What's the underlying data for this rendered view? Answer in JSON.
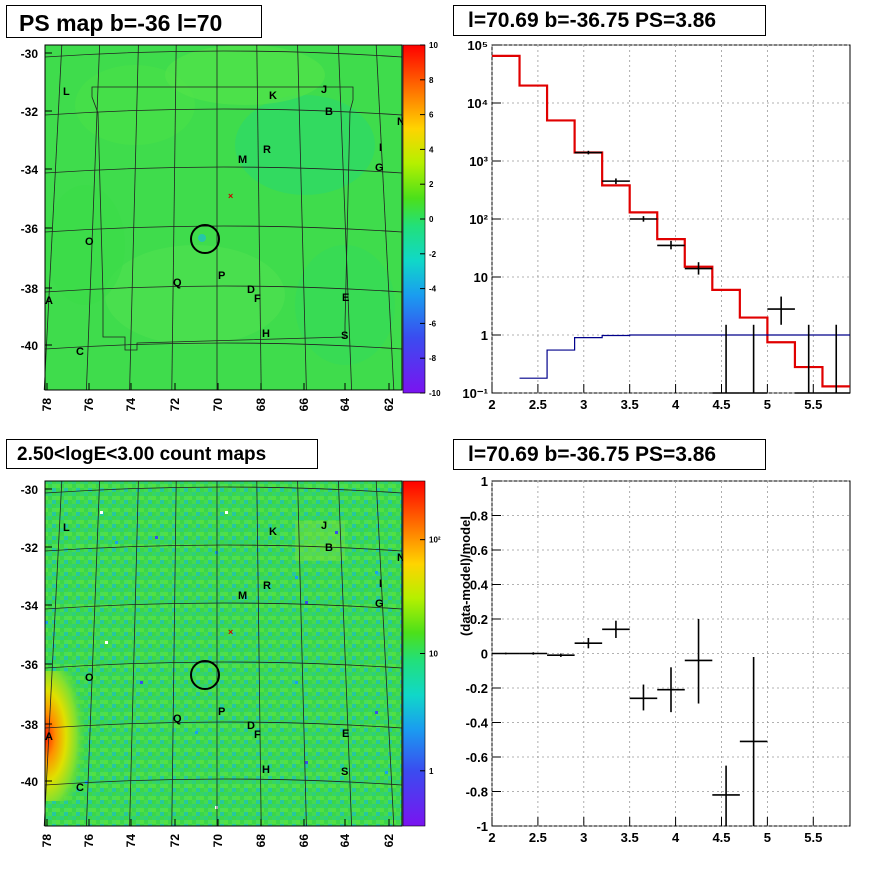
{
  "panels": {
    "tl_title": "PS map b=-36 l=70",
    "tr_title": "l=70.69 b=-36.75 PS=3.86",
    "bl_title": "2.50<logE<3.00 count maps",
    "br_title": "l=70.69 b=-36.75 PS=3.86"
  },
  "map_axes": {
    "y_ticks": [
      "-30",
      "-32",
      "-34",
      "-36",
      "-38",
      "-40"
    ],
    "x_ticks": [
      "78",
      "76",
      "74",
      "72",
      "70",
      "68",
      "66",
      "64",
      "62"
    ]
  },
  "source_labels": [
    "L",
    "K",
    "J",
    "B",
    "N",
    "R",
    "M",
    "I",
    "G",
    "O",
    "Q",
    "P",
    "D",
    "F",
    "E",
    "A",
    "H",
    "S",
    "C"
  ],
  "colors": {
    "map_bg": "#33e04d",
    "model_line": "#e00000",
    "background_line": "#00008b",
    "data": "#000000"
  },
  "colorbar_ts": {
    "ticks": [
      "10",
      "8",
      "6",
      "4",
      "2",
      "0",
      "-2",
      "-4",
      "-6",
      "-8",
      "-10"
    ]
  },
  "colorbar_counts": {
    "ticks": [
      "10²",
      "10",
      "1"
    ]
  },
  "chart_data": [
    {
      "type": "scatter",
      "panel": "spectrum",
      "title": "l=70.69 b=-36.75 PS=3.86",
      "xlabel": "",
      "ylabel": "",
      "xlim": [
        2,
        5.9
      ],
      "ylim": [
        0.1,
        100000
      ],
      "y_log": true,
      "x_ticks": [
        "2",
        "2.5",
        "3",
        "3.5",
        "4",
        "4.5",
        "5",
        "5.5"
      ],
      "y_ticks": [
        "10⁻¹",
        "1",
        "10",
        "10²",
        "10³",
        "10⁴",
        "10⁵"
      ],
      "model_step": {
        "edges": [
          2,
          2.3,
          2.6,
          2.9,
          3.2,
          3.5,
          3.8,
          4.1,
          4.4,
          4.7,
          5.0,
          5.3,
          5.6,
          5.9
        ],
        "values": [
          65000,
          20000,
          5000,
          1400,
          380,
          130,
          45,
          15,
          6,
          2,
          0.75,
          0.28,
          0.13
        ]
      },
      "background_step": {
        "edges": [
          2.3,
          2.6,
          2.9,
          3.2,
          3.5,
          5.9
        ],
        "values": [
          0.18,
          0.55,
          0.9,
          0.98,
          1
        ]
      },
      "data_points": [
        {
          "x": 3.05,
          "y": 1400,
          "xerr": 0.15,
          "ylo": 1300,
          "yhi": 1500
        },
        {
          "x": 3.35,
          "y": 450,
          "xerr": 0.15,
          "ylo": 400,
          "yhi": 500
        },
        {
          "x": 3.65,
          "y": 100,
          "xerr": 0.15,
          "ylo": 90,
          "yhi": 112
        },
        {
          "x": 3.95,
          "y": 35,
          "xerr": 0.15,
          "ylo": 30,
          "yhi": 42
        },
        {
          "x": 4.25,
          "y": 14,
          "xerr": 0.15,
          "ylo": 11,
          "yhi": 18
        },
        {
          "x": 4.55,
          "y": 0.1,
          "xerr": 0.15,
          "ylo": 0.1,
          "yhi": 1.5
        },
        {
          "x": 4.85,
          "y": 0.1,
          "xerr": 0.15,
          "ylo": 0.1,
          "yhi": 1.5
        },
        {
          "x": 5.15,
          "y": 2.8,
          "xerr": 0.15,
          "ylo": 1.5,
          "yhi": 4.6
        },
        {
          "x": 5.45,
          "y": 0.1,
          "xerr": 0.15,
          "ylo": 0.1,
          "yhi": 1.5
        },
        {
          "x": 5.75,
          "y": 0.1,
          "xerr": 0.15,
          "ylo": 0.1,
          "yhi": 1.5
        }
      ]
    },
    {
      "type": "scatter",
      "panel": "residual",
      "title": "l=70.69 b=-36.75 PS=3.86",
      "xlabel": "",
      "ylabel": "(data-model)/model",
      "xlim": [
        2,
        5.9
      ],
      "ylim": [
        -1,
        1
      ],
      "x_ticks": [
        "2",
        "2.5",
        "3",
        "3.5",
        "4",
        "4.5",
        "5",
        "5.5"
      ],
      "y_ticks": [
        "-1",
        "-0.8",
        "-0.6",
        "-0.4",
        "-0.2",
        "0",
        "0.2",
        "0.4",
        "0.6",
        "0.8",
        "1"
      ],
      "data_points": [
        {
          "x": 2.15,
          "y": 0.0,
          "xerr": 0.15,
          "ylo": -0.005,
          "yhi": 0.005
        },
        {
          "x": 2.45,
          "y": 0.0,
          "xerr": 0.15,
          "ylo": -0.007,
          "yhi": 0.007
        },
        {
          "x": 2.75,
          "y": -0.01,
          "xerr": 0.15,
          "ylo": -0.02,
          "yhi": 0.0
        },
        {
          "x": 3.05,
          "y": 0.06,
          "xerr": 0.15,
          "ylo": 0.03,
          "yhi": 0.09
        },
        {
          "x": 3.35,
          "y": 0.14,
          "xerr": 0.15,
          "ylo": 0.09,
          "yhi": 0.19
        },
        {
          "x": 3.65,
          "y": -0.26,
          "xerr": 0.15,
          "ylo": -0.33,
          "yhi": -0.18
        },
        {
          "x": 3.95,
          "y": -0.21,
          "xerr": 0.15,
          "ylo": -0.34,
          "yhi": -0.08
        },
        {
          "x": 4.25,
          "y": -0.04,
          "xerr": 0.15,
          "ylo": -0.29,
          "yhi": 0.2
        },
        {
          "x": 4.55,
          "y": -0.82,
          "xerr": 0.15,
          "ylo": -1.0,
          "yhi": -0.65
        },
        {
          "x": 4.85,
          "y": -0.51,
          "xerr": 0.15,
          "ylo": -1.0,
          "yhi": -0.02
        }
      ]
    }
  ]
}
